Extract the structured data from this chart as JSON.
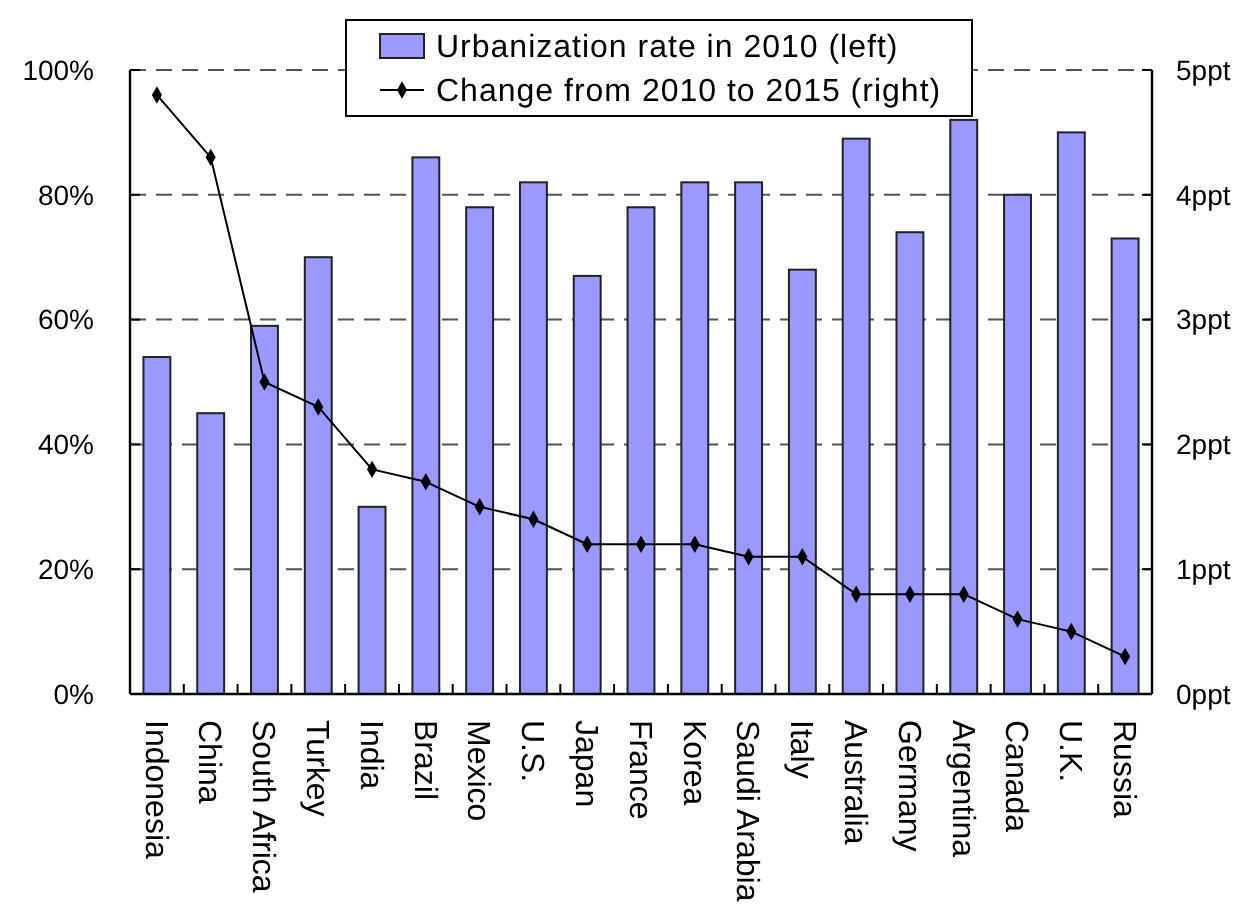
{
  "chart_data": {
    "type": "bar",
    "categories": [
      "Indonesia",
      "China",
      "South Africa",
      "Turkey",
      "India",
      "Brazil",
      "Mexico",
      "U.S.",
      "Japan",
      "France",
      "Korea",
      "Saudi Arabia",
      "Italy",
      "Australia",
      "Germany",
      "Argentina",
      "Canada",
      "U.K.",
      "Russia"
    ],
    "series": [
      {
        "name": "Urbanization rate in 2010 (left)",
        "color": "#9999ff",
        "values": [
          54,
          45,
          59,
          70,
          30,
          86,
          78,
          82,
          67,
          78,
          82,
          82,
          68,
          89,
          74,
          92,
          80,
          90,
          73
        ]
      },
      {
        "name": "Change from 2010 to 2015 (right)",
        "type": "line",
        "axis": "y2",
        "color": "#000000",
        "values": [
          4.8,
          4.3,
          2.5,
          2.3,
          1.8,
          1.7,
          1.5,
          1.4,
          1.2,
          1.2,
          1.2,
          1.1,
          1.1,
          0.8,
          0.8,
          0.8,
          0.6,
          0.5,
          0.3
        ]
      }
    ],
    "ylim": [
      0,
      100
    ],
    "yticks": [
      {
        "value": 0,
        "label": "0%"
      },
      {
        "value": 20,
        "label": "20%"
      },
      {
        "value": 40,
        "label": "40%"
      },
      {
        "value": 60,
        "label": "60%"
      },
      {
        "value": 80,
        "label": "80%"
      },
      {
        "value": 100,
        "label": "100%"
      }
    ],
    "y2lim": [
      0,
      5
    ],
    "y2ticks": [
      {
        "value": 0,
        "label": "0ppt"
      },
      {
        "value": 1,
        "label": "1ppt"
      },
      {
        "value": 2,
        "label": "2ppt"
      },
      {
        "value": 3,
        "label": "3ppt"
      },
      {
        "value": 4,
        "label": "4ppt"
      },
      {
        "value": 5,
        "label": "5ppt"
      }
    ],
    "grid": "y",
    "legend": "top",
    "marker": "diamond",
    "line_style": "solid"
  }
}
